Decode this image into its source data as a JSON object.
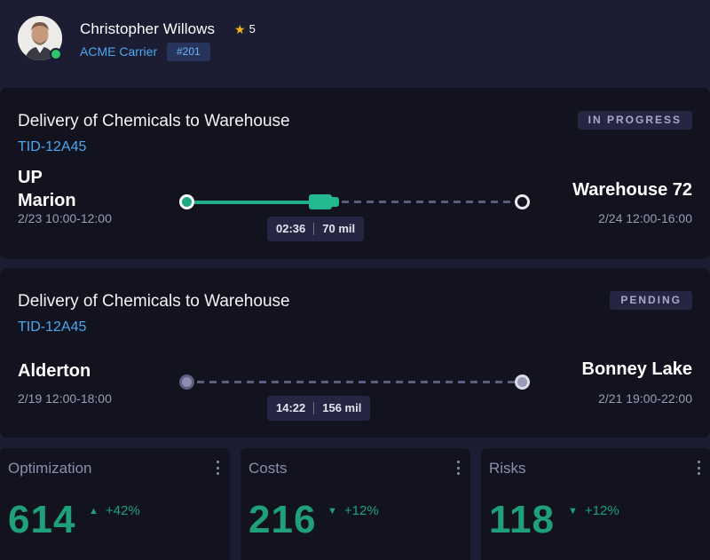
{
  "driver": {
    "name": "Christopher Willows",
    "rating": "5",
    "carrier": "ACME Carrier",
    "badge": "#201",
    "status_color": "#2ec66d"
  },
  "deliveries": [
    {
      "title": "Delivery of Chemicals to Warehouse",
      "tid": "TID-12A45",
      "status": "IN PROGRESS",
      "origin": {
        "name": "UP\nMarion",
        "time": "2/23 10:00-12:00"
      },
      "destination": {
        "name": "Warehouse 72",
        "time": "2/24 12:00-16:00"
      },
      "eta": "02:36",
      "distance": "70 mil",
      "progress": 0.44
    },
    {
      "title": "Delivery of Chemicals to Warehouse",
      "tid": "TID-12A45",
      "status": "PENDING",
      "origin": {
        "name": "Alderton",
        "time": "2/19 12:00-18:00"
      },
      "destination": {
        "name": "Bonney Lake",
        "time": "2/21 19:00-22:00"
      },
      "eta": "14:22",
      "distance": "156 mil",
      "progress": 0
    }
  ],
  "kpis": [
    {
      "label": "Optimization",
      "value": "614",
      "trend": "+42%",
      "direction": "up",
      "icon": "kebab-icon"
    },
    {
      "label": "Costs",
      "value": "216",
      "trend": "+12%",
      "direction": "down",
      "icon": "kebab-icon"
    },
    {
      "label": "Risks",
      "value": "118",
      "trend": "+12%",
      "direction": "down",
      "icon": "kebab-icon"
    }
  ],
  "colors": {
    "accent_green": "#1fa07b",
    "link_blue": "#4aa8f0",
    "star": "#f5b81c",
    "background": "#1c1d33",
    "card": "#13131f"
  }
}
